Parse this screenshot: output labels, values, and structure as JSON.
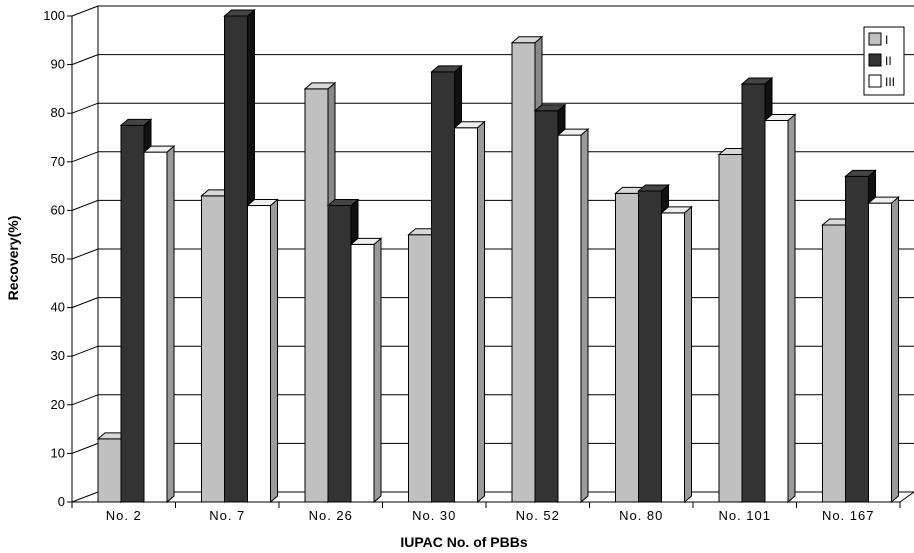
{
  "chart_data": {
    "type": "bar",
    "title": "",
    "xlabel": "IUPAC No. of PBBs",
    "ylabel": "Recovery(%)",
    "ylim": [
      0,
      100
    ],
    "yticks": [
      0,
      10,
      20,
      30,
      40,
      50,
      60,
      70,
      80,
      90,
      100
    ],
    "grid": true,
    "style": "3d-bars",
    "legend_position": "top-right",
    "categories": [
      "No. 2",
      "No. 7",
      "No. 26",
      "No. 30",
      "No. 52",
      "No. 80",
      "No. 101",
      "No. 167"
    ],
    "series": [
      {
        "name": "I",
        "color": "#c0c0c0",
        "values": [
          13,
          63,
          85,
          55,
          94.5,
          63.5,
          71.5,
          57
        ]
      },
      {
        "name": "II",
        "color": "#333333",
        "values": [
          77.5,
          100,
          61,
          88.5,
          80.5,
          64,
          86,
          67
        ]
      },
      {
        "name": "III",
        "color": "#ffffff",
        "values": [
          72,
          61,
          53,
          77,
          75.5,
          59.5,
          78.5,
          61.5
        ]
      }
    ]
  }
}
